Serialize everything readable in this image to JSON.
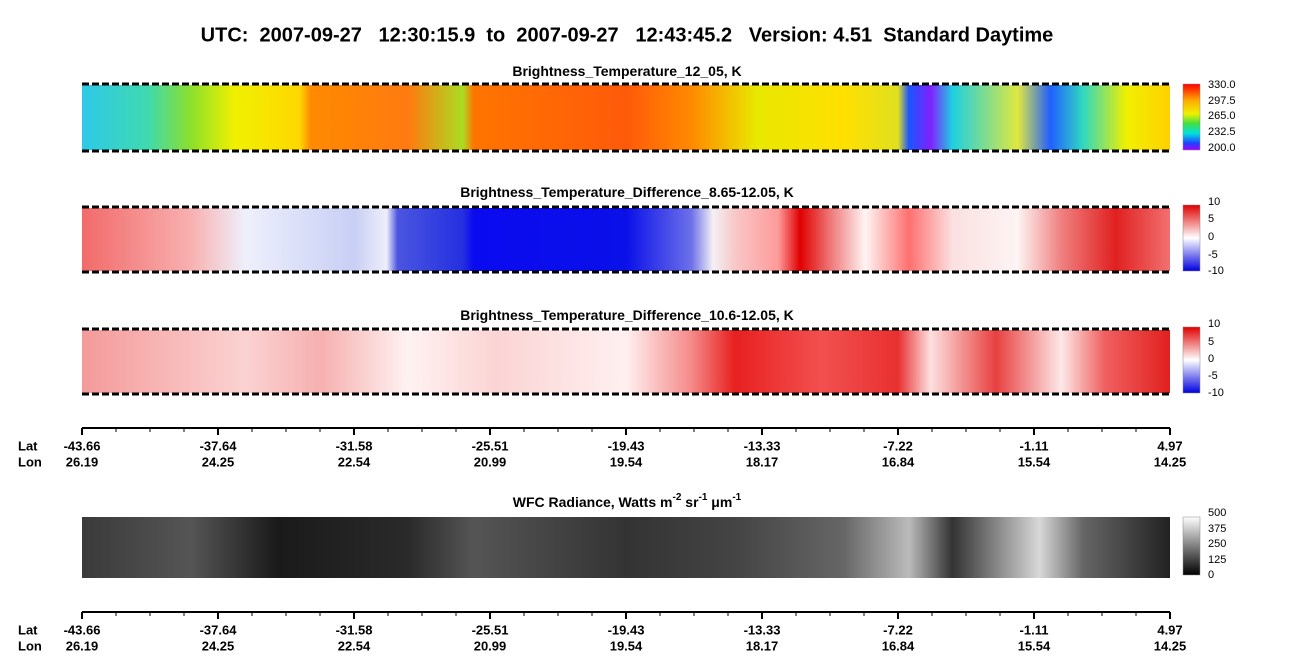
{
  "title": "UTC:  2007-09-27   12:30:15.9  to  2007-09-27   12:43:45.2   Version: 4.51  Standard Daytime",
  "panels": [
    {
      "title": [
        "Brightness_Temperature_12_05, K"
      ],
      "colorbar": [
        "330.0",
        "297.5",
        "265.0",
        "232.5",
        "200.0"
      ]
    },
    {
      "title": [
        "Brightness_Temperature_Difference_8.65-12.05, K"
      ],
      "colorbar": [
        "10",
        "5",
        "0",
        "-5",
        "-10"
      ]
    },
    {
      "title": [
        "Brightness_Temperature_Difference_10.6-12.05, K"
      ],
      "colorbar": [
        "10",
        "5",
        "0",
        "-5",
        "-10"
      ]
    },
    {
      "title": [
        "WFC Radiance, Watts m",
        "-2",
        " sr",
        "-1",
        " μm",
        "-1"
      ],
      "colorbar": [
        "500",
        "375",
        "250",
        "125",
        "0"
      ]
    }
  ],
  "axes": [
    {
      "lat_label": "Lat",
      "lon_label": "Lon",
      "lat": [
        "-43.66",
        "-37.64",
        "-31.58",
        "-25.51",
        "-19.43",
        "-13.33",
        "-7.22",
        "-1.11",
        "4.97"
      ],
      "lon": [
        "26.19",
        "24.25",
        "22.54",
        "20.99",
        "19.54",
        "18.17",
        "16.84",
        "15.54",
        "14.25"
      ]
    },
    {
      "lat_label": "Lat",
      "lon_label": "Lon",
      "lat": [
        "-43.66",
        "-37.64",
        "-31.58",
        "-25.51",
        "-19.43",
        "-13.33",
        "-7.22",
        "-1.11",
        "4.97"
      ],
      "lon": [
        "26.19",
        "24.25",
        "22.54",
        "20.99",
        "19.54",
        "18.17",
        "16.84",
        "15.54",
        "14.25"
      ]
    }
  ]
}
